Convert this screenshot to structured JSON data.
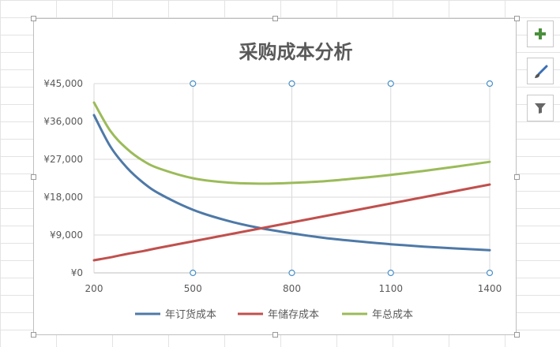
{
  "chart_data": {
    "type": "line",
    "title": "采购成本分析",
    "xlabel": "",
    "ylabel": "",
    "x": [
      200,
      250,
      300,
      350,
      400,
      500,
      600,
      700,
      800,
      900,
      1000,
      1100,
      1200,
      1300,
      1400
    ],
    "xticks": [
      "200",
      "500",
      "800",
      "1100",
      "1400"
    ],
    "yticks": [
      "¥0",
      "¥9,000",
      "¥18,000",
      "¥27,000",
      "¥36,000",
      "¥45,000"
    ],
    "ylim": [
      0,
      45000
    ],
    "xlim": [
      200,
      1400
    ],
    "grid": true,
    "legend_position": "bottom",
    "series": [
      {
        "name": "年订货成本",
        "color": "#4e79a7",
        "values": [
          37500,
          30000,
          25000,
          21400,
          18750,
          15000,
          12500,
          10700,
          9400,
          8300,
          7500,
          6800,
          6250,
          5800,
          5400
        ]
      },
      {
        "name": "年储存成本",
        "color": "#c0504d",
        "values": [
          3000,
          3700,
          4500,
          5200,
          6000,
          7500,
          9000,
          10500,
          12000,
          13500,
          15000,
          16500,
          18000,
          19500,
          21000
        ]
      },
      {
        "name": "年总成本",
        "color": "#9bbb59",
        "values": [
          40500,
          33700,
          29500,
          26600,
          24750,
          22500,
          21500,
          21200,
          21400,
          21800,
          22500,
          23300,
          24250,
          25300,
          26400
        ]
      }
    ]
  },
  "toolbar": {
    "buttons": [
      {
        "name": "chart-elements-button",
        "icon": "plus-icon"
      },
      {
        "name": "chart-styles-button",
        "icon": "brush-icon"
      },
      {
        "name": "chart-filters-button",
        "icon": "funnel-icon"
      }
    ]
  }
}
